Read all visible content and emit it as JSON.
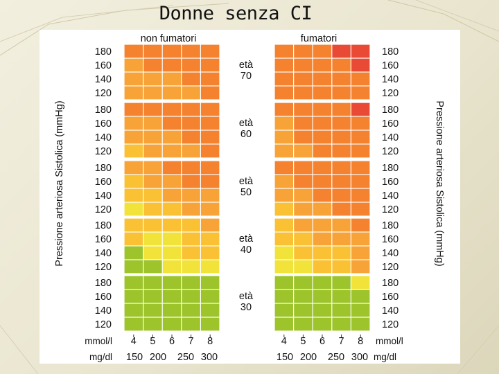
{
  "slide": {
    "title": "Donne senza CI"
  },
  "chart_data": {
    "type": "heatmap",
    "column_headers": {
      "left": "non fumatori",
      "right": "fumatori"
    },
    "y_axis_label": "Pressione arteriosa Sistolica (mmHg)",
    "systolic_levels": [
      "180",
      "160",
      "140",
      "120"
    ],
    "age_groups": [
      {
        "word": "età",
        "age": "70"
      },
      {
        "word": "età",
        "age": "60"
      },
      {
        "word": "età",
        "age": "50"
      },
      {
        "word": "età",
        "age": "40"
      },
      {
        "word": "età",
        "age": "30"
      }
    ],
    "x_axis": {
      "mmol_label": "mmol/l",
      "mmol_values": [
        "4",
        "5",
        "6",
        "7",
        "8"
      ],
      "mgdl_label": "mg/dl",
      "mgdl_values": [
        "150",
        "200",
        "250",
        "300"
      ]
    },
    "palette": {
      "0": "#9dc42a",
      "1": "#f2e33a",
      "2": "#f9c133",
      "3": "#f8a337",
      "4": "#f4822f",
      "5": "#e84a36"
    },
    "risk_grid": {
      "non_fumatori": [
        [
          [
            4,
            4,
            4,
            4,
            4
          ],
          [
            3,
            4,
            4,
            4,
            4
          ],
          [
            3,
            3,
            3,
            4,
            4
          ],
          [
            3,
            3,
            3,
            3,
            4
          ]
        ],
        [
          [
            4,
            4,
            4,
            4,
            4
          ],
          [
            3,
            3,
            4,
            4,
            4
          ],
          [
            3,
            3,
            3,
            4,
            4
          ],
          [
            2,
            3,
            3,
            3,
            4
          ]
        ],
        [
          [
            3,
            3,
            4,
            4,
            4
          ],
          [
            2,
            3,
            3,
            4,
            4
          ],
          [
            2,
            2,
            3,
            3,
            3
          ],
          [
            1,
            2,
            2,
            3,
            3
          ]
        ],
        [
          [
            2,
            2,
            2,
            2,
            3
          ],
          [
            2,
            1,
            1,
            2,
            2
          ],
          [
            0,
            1,
            1,
            2,
            2
          ],
          [
            0,
            0,
            1,
            1,
            1
          ]
        ],
        [
          [
            0,
            0,
            0,
            0,
            0
          ],
          [
            0,
            0,
            0,
            0,
            0
          ],
          [
            0,
            0,
            0,
            0,
            0
          ],
          [
            0,
            0,
            0,
            0,
            0
          ]
        ]
      ],
      "fumatori": [
        [
          [
            4,
            4,
            4,
            5,
            5
          ],
          [
            4,
            4,
            4,
            4,
            5
          ],
          [
            4,
            4,
            4,
            4,
            4
          ],
          [
            4,
            4,
            4,
            4,
            4
          ]
        ],
        [
          [
            4,
            4,
            4,
            4,
            5
          ],
          [
            3,
            4,
            4,
            4,
            4
          ],
          [
            3,
            4,
            4,
            4,
            4
          ],
          [
            3,
            3,
            4,
            4,
            4
          ]
        ],
        [
          [
            4,
            4,
            4,
            4,
            4
          ],
          [
            3,
            4,
            4,
            4,
            4
          ],
          [
            3,
            3,
            4,
            4,
            4
          ],
          [
            2,
            3,
            3,
            4,
            4
          ]
        ],
        [
          [
            2,
            3,
            3,
            3,
            4
          ],
          [
            2,
            2,
            3,
            3,
            3
          ],
          [
            1,
            2,
            2,
            2,
            3
          ],
          [
            1,
            1,
            2,
            2,
            3
          ]
        ],
        [
          [
            0,
            0,
            0,
            0,
            1
          ],
          [
            0,
            0,
            0,
            0,
            0
          ],
          [
            0,
            0,
            0,
            0,
            0
          ],
          [
            0,
            0,
            0,
            0,
            0
          ]
        ]
      ]
    }
  }
}
